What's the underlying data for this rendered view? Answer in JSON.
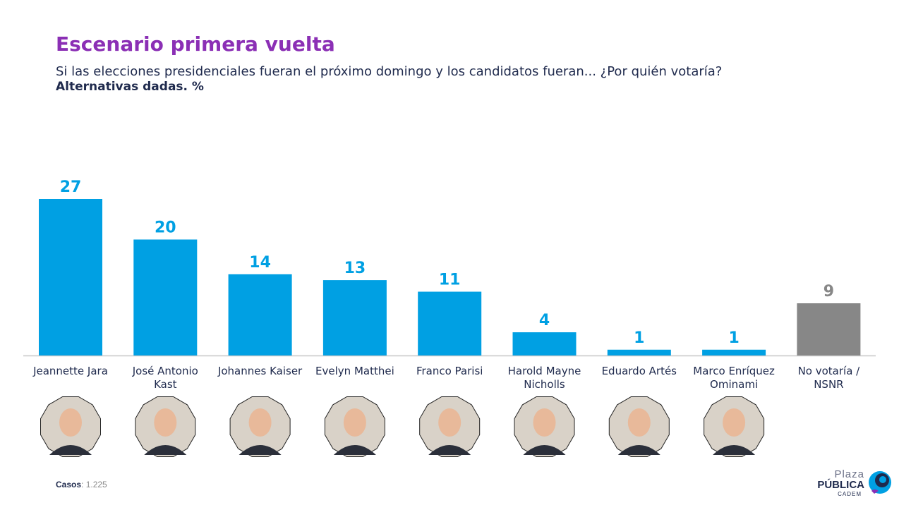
{
  "header": {
    "title": "Escenario primera vuelta",
    "subtitle": "Si las elecciones presidenciales fueran el próximo domingo y los candidatos fueran... ¿Por quién votaría?",
    "note": "Alternativas dadas. %"
  },
  "footer": {
    "cases_label": "Casos",
    "cases_value": ": 1.225"
  },
  "logo": {
    "line1": "Plaza",
    "line2": "PÚBLICA",
    "line3": "CADEM"
  },
  "colors": {
    "candidate_bar": "#00a0e3",
    "no_vote_bar": "#878787",
    "title": "#8b2fb5"
  },
  "chart_data": {
    "type": "bar",
    "title": "Escenario primera vuelta",
    "xlabel": "",
    "ylabel": "",
    "ylim": [
      0,
      27
    ],
    "grid": false,
    "categories": [
      [
        "Jeannette Jara"
      ],
      [
        "José Antonio",
        "Kast"
      ],
      [
        "Johannes Kaiser"
      ],
      [
        "Evelyn Matthei"
      ],
      [
        "Franco Parisi"
      ],
      [
        "Harold Mayne",
        "Nicholls"
      ],
      [
        "Eduardo Artés"
      ],
      [
        "Marco Enríquez",
        "Ominami"
      ],
      [
        "No votaría /",
        "NSNR"
      ]
    ],
    "values": [
      27,
      20,
      14,
      13,
      11,
      4,
      1,
      1,
      9
    ],
    "value_labels": [
      "27",
      "20",
      "14",
      "13",
      "11",
      "4",
      "1",
      "1",
      "9"
    ],
    "bar_colors": [
      "#00a0e3",
      "#00a0e3",
      "#00a0e3",
      "#00a0e3",
      "#00a0e3",
      "#00a0e3",
      "#00a0e3",
      "#00a0e3",
      "#878787"
    ]
  }
}
